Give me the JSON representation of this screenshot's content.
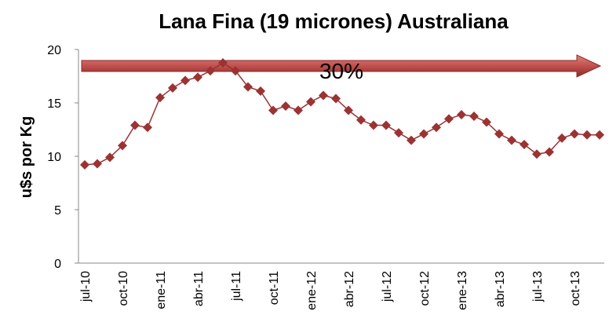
{
  "chart_data": {
    "type": "line",
    "title": "Lana Fina (19 micrones) Australiana",
    "y_label": "u$s por Kg",
    "annotation": "30%",
    "categories": [
      "jul-10",
      null,
      null,
      "oct-10",
      null,
      null,
      "ene-11",
      null,
      null,
      "abr-11",
      null,
      null,
      "jul-11",
      null,
      null,
      "oct-11",
      null,
      null,
      "ene-12",
      null,
      null,
      "abr-12",
      null,
      null,
      "jul-12",
      null,
      null,
      "oct-12",
      null,
      null,
      "ene-13",
      null,
      null,
      "abr-13",
      null,
      null,
      "jul-13",
      null,
      null,
      "oct-13",
      null,
      null
    ],
    "series": [
      {
        "name": "Lana Fina",
        "color": "#9b3333",
        "values": [
          9.2,
          9.3,
          9.9,
          11.0,
          12.9,
          12.7,
          15.5,
          16.4,
          17.1,
          17.4,
          18.0,
          18.75,
          18.0,
          16.5,
          16.1,
          14.3,
          14.7,
          14.3,
          15.1,
          15.7,
          15.4,
          14.3,
          13.4,
          12.9,
          12.9,
          12.2,
          11.5,
          12.1,
          12.7,
          13.5,
          13.9,
          13.75,
          13.2,
          12.1,
          11.5,
          11.1,
          10.2,
          10.4,
          11.7,
          12.1,
          12.0,
          12.0
        ]
      }
    ],
    "ylim": [
      0,
      20
    ],
    "yticks": [
      0,
      5,
      10,
      15,
      20
    ],
    "grid": false
  }
}
